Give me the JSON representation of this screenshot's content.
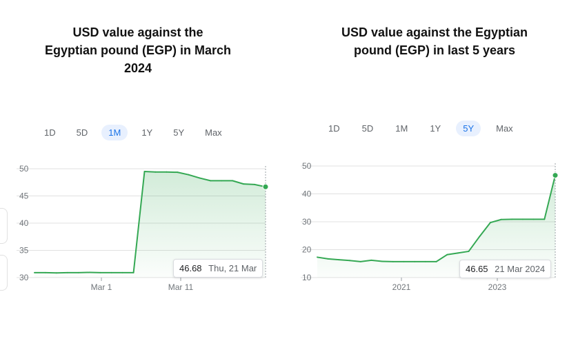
{
  "left": {
    "title": "USD value against the Egyptian pound (EGP) in March 2024",
    "title_line1": "USD value against the",
    "title_line2": "Egyptian pound (EGP) in March",
    "title_line3": "2024",
    "ranges": [
      "1D",
      "5D",
      "1M",
      "1Y",
      "5Y",
      "Max"
    ],
    "active_range": "1M",
    "tooltip": {
      "value": "46.68",
      "date": "Thu, 21 Mar"
    }
  },
  "right": {
    "title": "USD value against the Egyptian pound (EGP) in last 5 years",
    "title_line1": "USD value against the Egyptian",
    "title_line2": "pound (EGP) in last 5 years",
    "ranges": [
      "1D",
      "5D",
      "1M",
      "1Y",
      "5Y",
      "Max"
    ],
    "active_range": "5Y",
    "tooltip": {
      "value": "46.65",
      "date": "21 Mar 2024"
    }
  },
  "colors": {
    "line": "#34a853",
    "fill": "#34a853",
    "grid": "#e0e0e0",
    "active_tab_bg": "#e8f0fe",
    "active_tab_text": "#1a73e8"
  },
  "chart_data": [
    {
      "type": "area",
      "title": "USD value against the Egyptian pound (EGP) in March 2024",
      "x_ticks": [
        "Mar 1",
        "Mar 11"
      ],
      "y_ticks": [
        30,
        35,
        40,
        45,
        50
      ],
      "ylim": [
        30,
        50
      ],
      "grid": true,
      "x": [
        "Feb 21",
        "Feb 22",
        "Feb 23",
        "Feb 26",
        "Feb 27",
        "Feb 28",
        "Feb 29",
        "Mar 1",
        "Mar 4",
        "Mar 5",
        "Mar 6",
        "Mar 7",
        "Mar 8",
        "Mar 11",
        "Mar 12",
        "Mar 13",
        "Mar 14",
        "Mar 15",
        "Mar 18",
        "Mar 19",
        "Mar 20",
        "Mar 21"
      ],
      "values": [
        30.9,
        30.9,
        30.85,
        30.9,
        30.9,
        30.95,
        30.9,
        30.9,
        30.9,
        30.9,
        49.5,
        49.4,
        49.4,
        49.35,
        48.9,
        48.3,
        47.8,
        47.8,
        47.8,
        47.2,
        47.1,
        46.68
      ]
    },
    {
      "type": "area",
      "title": "USD value against the Egyptian pound (EGP) in last 5 years",
      "x_ticks": [
        "2021",
        "2023"
      ],
      "y_ticks": [
        10,
        20,
        30,
        40,
        50
      ],
      "ylim": [
        10,
        50
      ],
      "grid": true,
      "x": [
        "2019-03",
        "2019-06",
        "2019-09",
        "2019-12",
        "2020-03",
        "2020-06",
        "2020-09",
        "2020-12",
        "2021-03",
        "2021-06",
        "2021-09",
        "2021-12",
        "2022-03",
        "2022-06",
        "2022-09",
        "2022-12",
        "2023-01",
        "2023-03",
        "2023-06",
        "2023-09",
        "2023-12",
        "2024-02",
        "2024-03"
      ],
      "values": [
        17.3,
        16.7,
        16.4,
        16.1,
        15.7,
        16.2,
        15.8,
        15.7,
        15.7,
        15.7,
        15.7,
        15.7,
        18.2,
        18.8,
        19.4,
        24.7,
        29.7,
        30.8,
        30.9,
        30.9,
        30.9,
        30.9,
        46.65
      ]
    }
  ]
}
